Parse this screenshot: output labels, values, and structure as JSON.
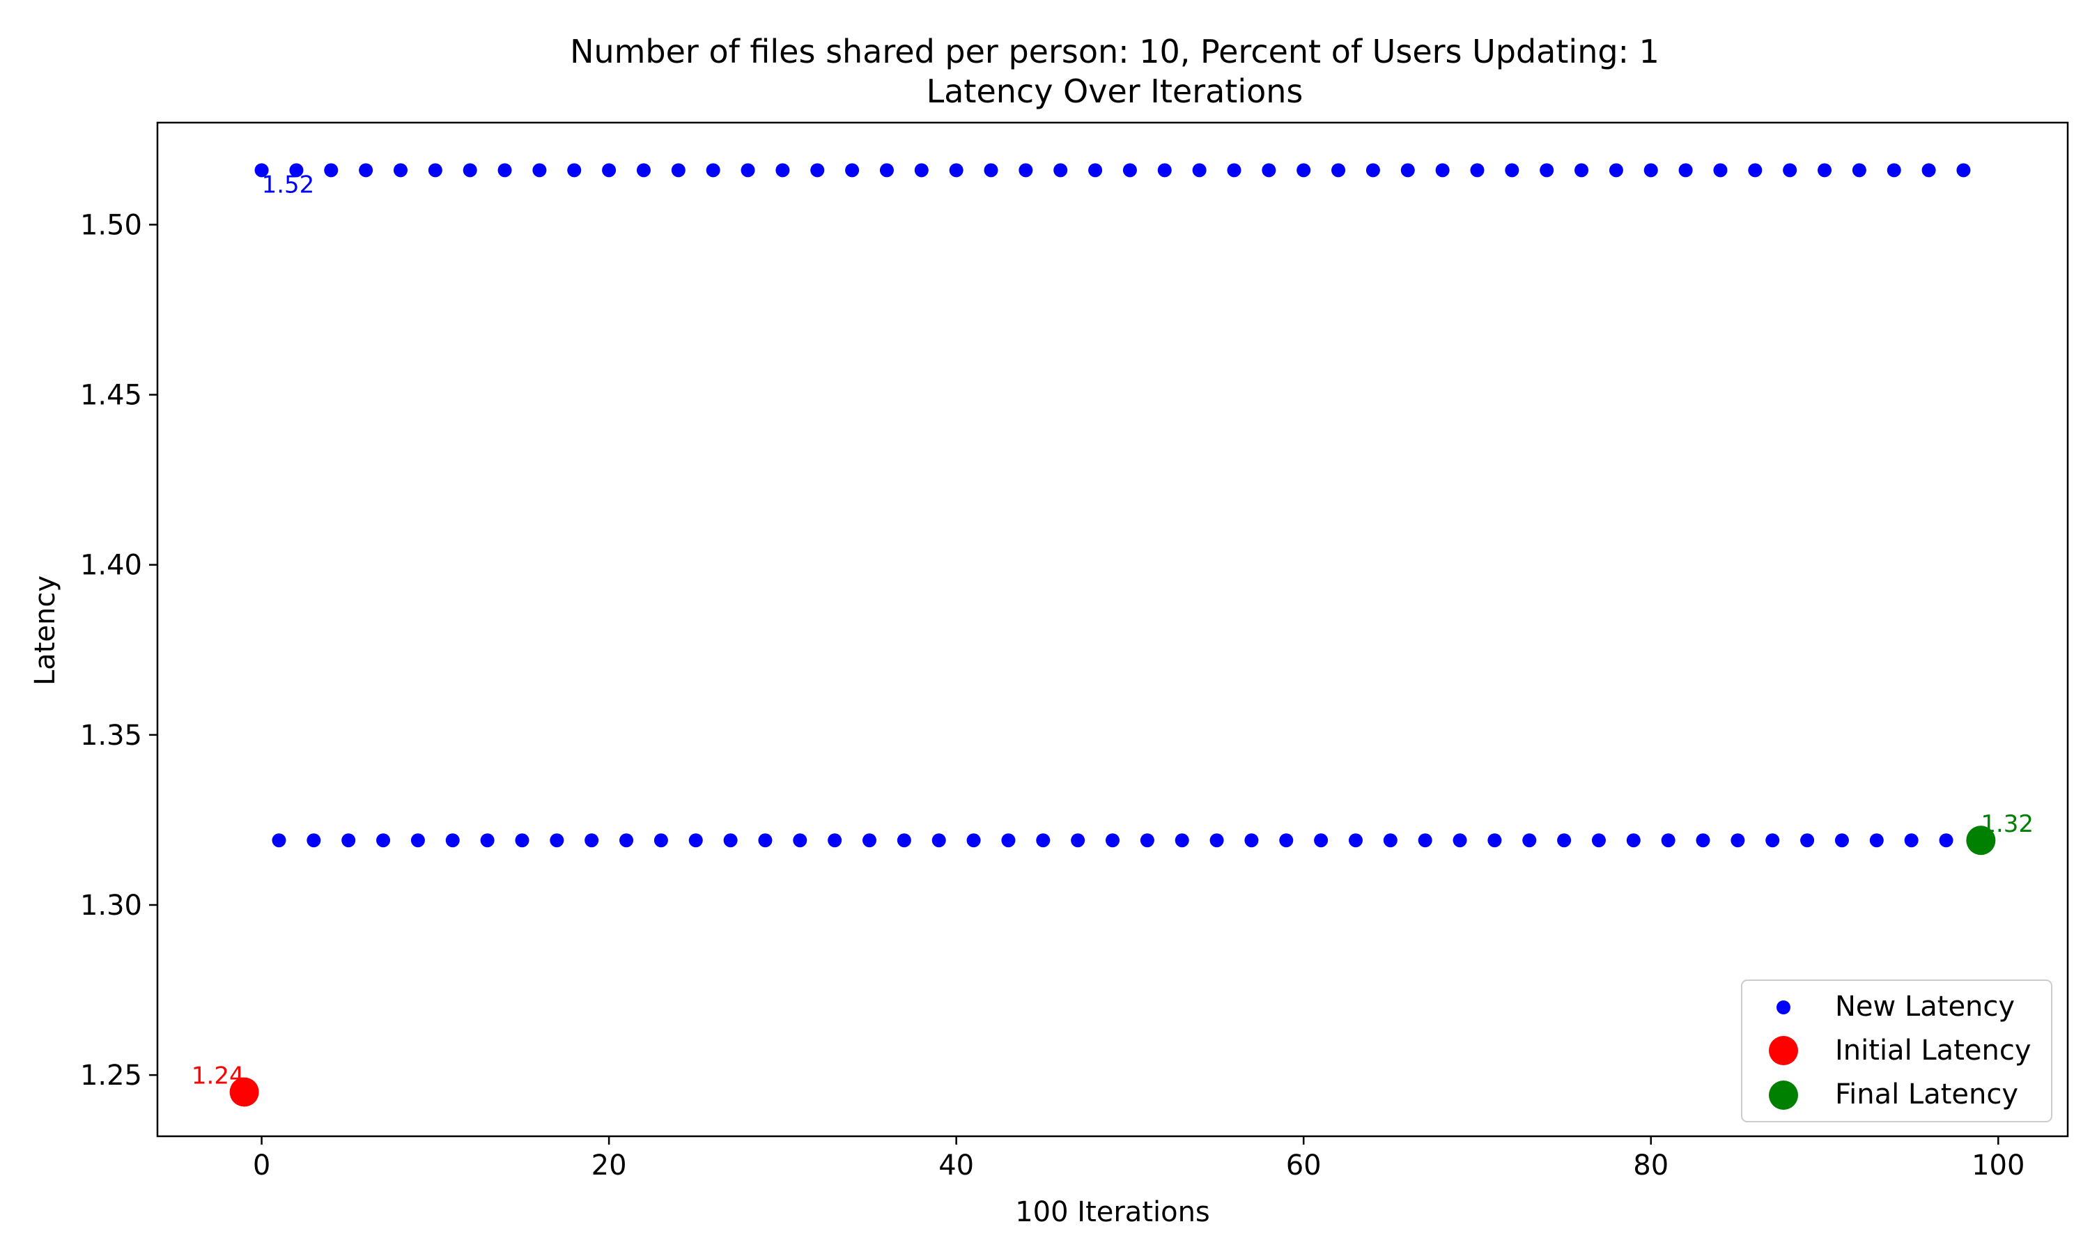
{
  "chart_data": {
    "type": "scatter",
    "title": "Number of files shared per person: 10, Percent of Users Updating: 1",
    "subtitle": "Latency Over Iterations",
    "xlabel": "100 Iterations",
    "ylabel": "Latency",
    "xlim": [
      -6,
      104
    ],
    "ylim": [
      1.232,
      1.53
    ],
    "xticks": [
      0,
      20,
      40,
      60,
      80,
      100
    ],
    "xtick_labels": [
      "0",
      "20",
      "40",
      "60",
      "80",
      "100"
    ],
    "yticks": [
      1.25,
      1.3,
      1.35,
      1.4,
      1.45,
      1.5
    ],
    "ytick_labels": [
      "1.25",
      "1.30",
      "1.35",
      "1.40",
      "1.45",
      "1.50"
    ],
    "grid": false,
    "legend_position": "lower-right",
    "series": [
      {
        "name": "New Latency",
        "color": "#0000ff",
        "marker": "small-circle",
        "points": [
          [
            0,
            1.516
          ],
          [
            1,
            1.319
          ],
          [
            2,
            1.516
          ],
          [
            3,
            1.319
          ],
          [
            4,
            1.516
          ],
          [
            5,
            1.319
          ],
          [
            6,
            1.516
          ],
          [
            7,
            1.319
          ],
          [
            8,
            1.516
          ],
          [
            9,
            1.319
          ],
          [
            10,
            1.516
          ],
          [
            11,
            1.319
          ],
          [
            12,
            1.516
          ],
          [
            13,
            1.319
          ],
          [
            14,
            1.516
          ],
          [
            15,
            1.319
          ],
          [
            16,
            1.516
          ],
          [
            17,
            1.319
          ],
          [
            18,
            1.516
          ],
          [
            19,
            1.319
          ],
          [
            20,
            1.516
          ],
          [
            21,
            1.319
          ],
          [
            22,
            1.516
          ],
          [
            23,
            1.319
          ],
          [
            24,
            1.516
          ],
          [
            25,
            1.319
          ],
          [
            26,
            1.516
          ],
          [
            27,
            1.319
          ],
          [
            28,
            1.516
          ],
          [
            29,
            1.319
          ],
          [
            30,
            1.516
          ],
          [
            31,
            1.319
          ],
          [
            32,
            1.516
          ],
          [
            33,
            1.319
          ],
          [
            34,
            1.516
          ],
          [
            35,
            1.319
          ],
          [
            36,
            1.516
          ],
          [
            37,
            1.319
          ],
          [
            38,
            1.516
          ],
          [
            39,
            1.319
          ],
          [
            40,
            1.516
          ],
          [
            41,
            1.319
          ],
          [
            42,
            1.516
          ],
          [
            43,
            1.319
          ],
          [
            44,
            1.516
          ],
          [
            45,
            1.319
          ],
          [
            46,
            1.516
          ],
          [
            47,
            1.319
          ],
          [
            48,
            1.516
          ],
          [
            49,
            1.319
          ],
          [
            50,
            1.516
          ],
          [
            51,
            1.319
          ],
          [
            52,
            1.516
          ],
          [
            53,
            1.319
          ],
          [
            54,
            1.516
          ],
          [
            55,
            1.319
          ],
          [
            56,
            1.516
          ],
          [
            57,
            1.319
          ],
          [
            58,
            1.516
          ],
          [
            59,
            1.319
          ],
          [
            60,
            1.516
          ],
          [
            61,
            1.319
          ],
          [
            62,
            1.516
          ],
          [
            63,
            1.319
          ],
          [
            64,
            1.516
          ],
          [
            65,
            1.319
          ],
          [
            66,
            1.516
          ],
          [
            67,
            1.319
          ],
          [
            68,
            1.516
          ],
          [
            69,
            1.319
          ],
          [
            70,
            1.516
          ],
          [
            71,
            1.319
          ],
          [
            72,
            1.516
          ],
          [
            73,
            1.319
          ],
          [
            74,
            1.516
          ],
          [
            75,
            1.319
          ],
          [
            76,
            1.516
          ],
          [
            77,
            1.319
          ],
          [
            78,
            1.516
          ],
          [
            79,
            1.319
          ],
          [
            80,
            1.516
          ],
          [
            81,
            1.319
          ],
          [
            82,
            1.516
          ],
          [
            83,
            1.319
          ],
          [
            84,
            1.516
          ],
          [
            85,
            1.319
          ],
          [
            86,
            1.516
          ],
          [
            87,
            1.319
          ],
          [
            88,
            1.516
          ],
          [
            89,
            1.319
          ],
          [
            90,
            1.516
          ],
          [
            91,
            1.319
          ],
          [
            92,
            1.516
          ],
          [
            93,
            1.319
          ],
          [
            94,
            1.516
          ],
          [
            95,
            1.319
          ],
          [
            96,
            1.516
          ],
          [
            97,
            1.319
          ],
          [
            98,
            1.516
          ]
        ]
      },
      {
        "name": "Initial Latency",
        "color": "#ff0000",
        "marker": "large-circle",
        "points": [
          [
            -1,
            1.245
          ]
        ]
      },
      {
        "name": "Final Latency",
        "color": "#008000",
        "marker": "large-circle",
        "points": [
          [
            99,
            1.319
          ]
        ]
      }
    ],
    "annotations": [
      {
        "text": "1.52",
        "x": 0,
        "y": 1.516,
        "color": "#0000ff",
        "placement": "below-right"
      },
      {
        "text": "1.24",
        "x": -1,
        "y": 1.245,
        "color": "#ff0000",
        "placement": "above-left"
      },
      {
        "text": "1.32",
        "x": 99,
        "y": 1.319,
        "color": "#008000",
        "placement": "above-right"
      }
    ]
  }
}
